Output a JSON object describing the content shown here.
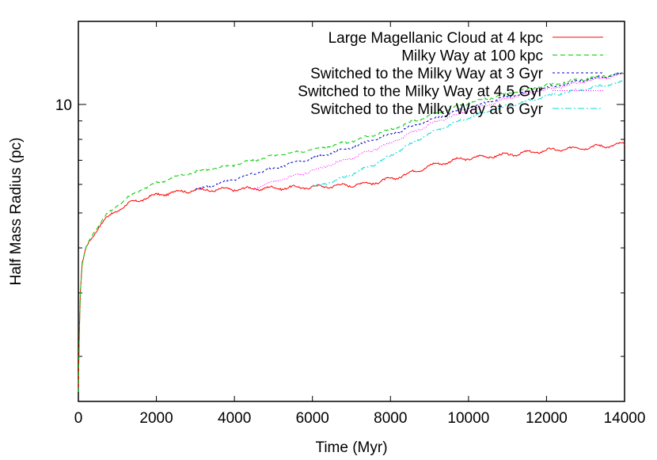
{
  "chart_data": {
    "type": "line",
    "title": "",
    "xlabel": "Time (Myr)",
    "ylabel": "Half Mass Radius (pc)",
    "xlim": [
      0,
      14000
    ],
    "ylim": [
      1.5,
      17
    ],
    "yscale": "log",
    "xticks": [
      0,
      2000,
      4000,
      6000,
      8000,
      10000,
      12000,
      14000
    ],
    "yticks_labeled": [
      10
    ],
    "yticks_minor": [
      2,
      3,
      4,
      5,
      6,
      7,
      8,
      9
    ],
    "legend_position": "top-right",
    "series": [
      {
        "name": "Large Magellanic Cloud at 4 kpc",
        "color": "#ff0000",
        "dash": "solid",
        "x": [
          0,
          50,
          100,
          200,
          300,
          500,
          700,
          1000,
          1300,
          1600,
          2000,
          2500,
          3000,
          3500,
          4000,
          4500,
          5000,
          6000,
          7000,
          7500,
          8000,
          8500,
          9000,
          9500,
          10000,
          11000,
          12000,
          13000,
          14000
        ],
        "y": [
          1.6,
          3.0,
          3.6,
          4.0,
          4.2,
          4.55,
          4.8,
          5.1,
          5.3,
          5.45,
          5.6,
          5.72,
          5.78,
          5.8,
          5.82,
          5.84,
          5.86,
          5.9,
          5.98,
          6.05,
          6.2,
          6.45,
          6.75,
          6.95,
          7.1,
          7.25,
          7.45,
          7.6,
          7.75
        ]
      },
      {
        "name": "Milky Way at 100 kpc",
        "color": "#00cc00",
        "dash": "6,4",
        "x": [
          0,
          50,
          100,
          200,
          300,
          500,
          700,
          1000,
          1300,
          1600,
          2000,
          2500,
          3000,
          3500,
          4000,
          5000,
          6000,
          7000,
          8000,
          9000,
          10000,
          11000,
          12000,
          13000,
          14000
        ],
        "y": [
          1.6,
          3.0,
          3.6,
          4.0,
          4.25,
          4.6,
          4.9,
          5.25,
          5.55,
          5.8,
          6.05,
          6.3,
          6.5,
          6.65,
          6.8,
          7.2,
          7.5,
          7.9,
          8.5,
          9.3,
          10.1,
          10.7,
          11.3,
          11.8,
          12.2
        ]
      },
      {
        "name": "Switched to the Milky Way at 3 Gyr",
        "color": "#0000cc",
        "dash": "3,3",
        "x": [
          3000,
          3500,
          4000,
          5000,
          6000,
          7000,
          8000,
          9000,
          10000,
          11000,
          12000,
          13000,
          14000
        ],
        "y": [
          5.8,
          6.0,
          6.2,
          6.65,
          7.1,
          7.6,
          8.25,
          9.05,
          9.8,
          10.5,
          11.1,
          11.7,
          12.2
        ]
      },
      {
        "name": "Switched to the Milky Way at 4.5 Gyr",
        "color": "#ff00ff",
        "dash": "1,2",
        "x": [
          4500,
          5000,
          6000,
          7000,
          8000,
          8500,
          9000,
          10000,
          11000,
          12000,
          13000,
          14000
        ],
        "y": [
          5.85,
          6.1,
          6.55,
          7.1,
          7.8,
          8.3,
          8.8,
          9.6,
          10.4,
          11.0,
          11.6,
          12.1
        ]
      },
      {
        "name": "Switched to the Milky Way at 6 Gyr",
        "color": "#00dddd",
        "dash": "8,3,2,3",
        "x": [
          6000,
          6500,
          7000,
          7500,
          8000,
          8500,
          9000,
          9500,
          10000,
          11000,
          12000,
          13000,
          14000
        ],
        "y": [
          5.9,
          6.1,
          6.4,
          6.75,
          7.2,
          7.75,
          8.3,
          8.75,
          9.2,
          9.9,
          10.55,
          11.05,
          11.55
        ]
      }
    ]
  }
}
